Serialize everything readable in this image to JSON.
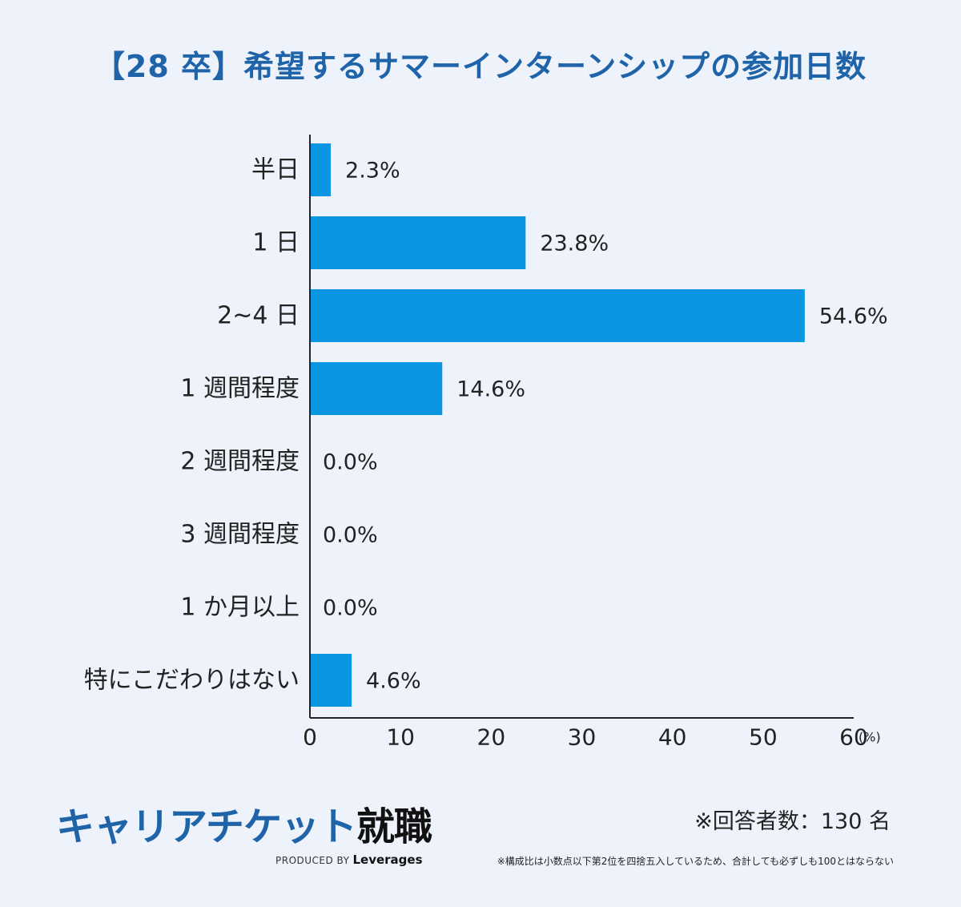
{
  "chart_data": {
    "type": "bar",
    "orientation": "horizontal",
    "title": "【28 卒】希望するサマーインターンシップの参加日数",
    "categories": [
      "半日",
      "1 日",
      "2~4 日",
      "1 週間程度",
      "2 週間程度",
      "3 週間程度",
      "1 か月以上",
      "特にこだわりはない"
    ],
    "values": [
      2.3,
      23.8,
      54.6,
      14.6,
      0.0,
      0.0,
      0.0,
      4.6
    ],
    "value_labels": [
      "2.3%",
      "23.8%",
      "54.6%",
      "14.6%",
      "0.0%",
      "0.0%",
      "0.0%",
      "4.6%"
    ],
    "xlim": [
      0,
      60
    ],
    "xticks": [
      "0",
      "10",
      "20",
      "30",
      "40",
      "50",
      "60"
    ],
    "xunit": "(%)",
    "grid": false,
    "legend": "none",
    "bar_color": "#0a96e2",
    "title_color": "#1f64a8",
    "background_color": "#eef2fb"
  },
  "footer": {
    "brand_main": "キャリアチケット",
    "brand_accent": "就職",
    "produced_by": "PRODUCED BY",
    "company": "Leverages",
    "respondents": "※回答者数：130 名",
    "note": "※構成比は小数点以下第2位を四捨五入しているため、合計しても必ずしも100とはならない"
  }
}
